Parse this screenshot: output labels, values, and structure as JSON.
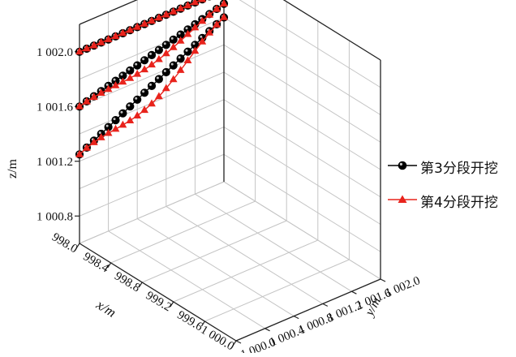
{
  "chart_data": {
    "type": "line-3d",
    "title": "",
    "xlabel": "x/m",
    "ylabel": "y/m",
    "zlabel": "z/m",
    "xlim": [
      998.0,
      1000.0
    ],
    "ylim": [
      1000.0,
      1002.0
    ],
    "zlim": [
      1000.6,
      1002.2
    ],
    "x_ticks": [
      "998.0",
      "998.4",
      "998.8",
      "999.2",
      "999.6",
      "1 000.0"
    ],
    "y_ticks": [
      "1 000.0",
      "1 000.4",
      "1 000.8",
      "1 001.2",
      "1 001.6",
      "1 002.0"
    ],
    "z_ticks": [
      "1 000.8",
      "1 001.2",
      "1 001.6",
      "1 002.0"
    ],
    "grid": true,
    "legend_position": "right",
    "colors": {
      "series1": "#000000",
      "series2": "#e8231c"
    },
    "series": [
      {
        "name": "第3分段开挖",
        "marker": "circle",
        "lines": [
          {
            "x": 998.0,
            "y": [
              1000.0,
              1002.0
            ],
            "z_start": 1002.0,
            "z_end": 1002.0,
            "dip": 0.0
          },
          {
            "x": 998.0,
            "y": [
              1000.0,
              1002.0
            ],
            "z_start": 1001.6,
            "z_end": 1001.9,
            "dip": 0.0
          },
          {
            "x": 998.0,
            "y": [
              1000.0,
              1002.0
            ],
            "z_start": 1001.25,
            "z_end": 1001.8,
            "dip": 0.0
          }
        ]
      },
      {
        "name": "第4分段开挖",
        "marker": "triangle",
        "lines": [
          {
            "x": 998.0,
            "y": [
              1000.0,
              1002.0
            ],
            "z_start": 1002.0,
            "z_end": 1002.0,
            "dip": 0.0
          },
          {
            "x": 998.0,
            "y": [
              1000.0,
              1002.0
            ],
            "z_start": 1001.6,
            "z_end": 1001.9,
            "dip": 0.07
          },
          {
            "x": 998.0,
            "y": [
              1000.0,
              1002.0
            ],
            "z_start": 1001.25,
            "z_end": 1001.8,
            "dip": 0.13
          }
        ]
      }
    ]
  }
}
